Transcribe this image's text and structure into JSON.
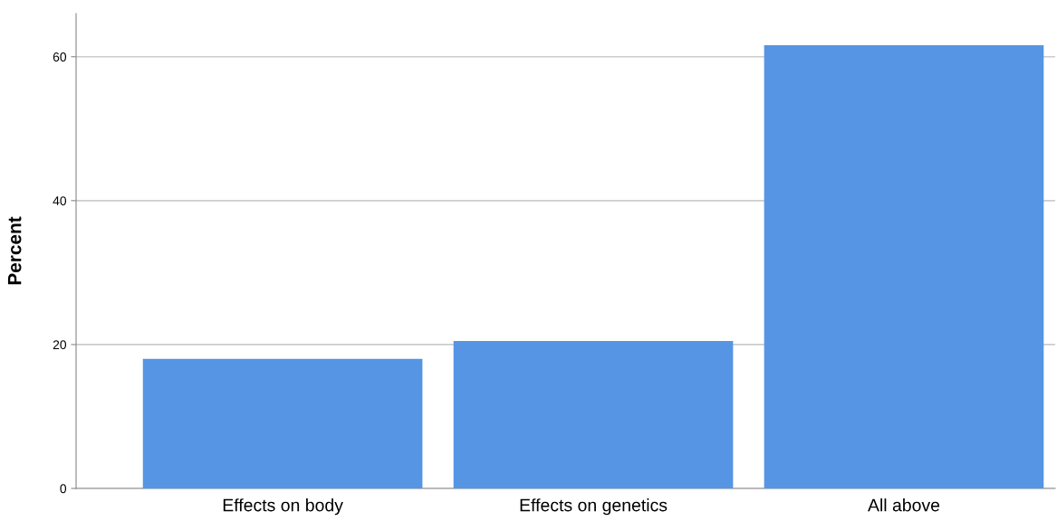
{
  "chart_data": {
    "type": "bar",
    "ylabel": "Percent",
    "categories": [
      "Effects on body",
      "Effects on genetics",
      "All above"
    ],
    "values": [
      18.0,
      20.5,
      61.6
    ],
    "color": "#5595e3",
    "ylim": [
      0,
      66
    ],
    "yticks": [
      0,
      20,
      40,
      60
    ],
    "grid": "y",
    "legend": false
  }
}
